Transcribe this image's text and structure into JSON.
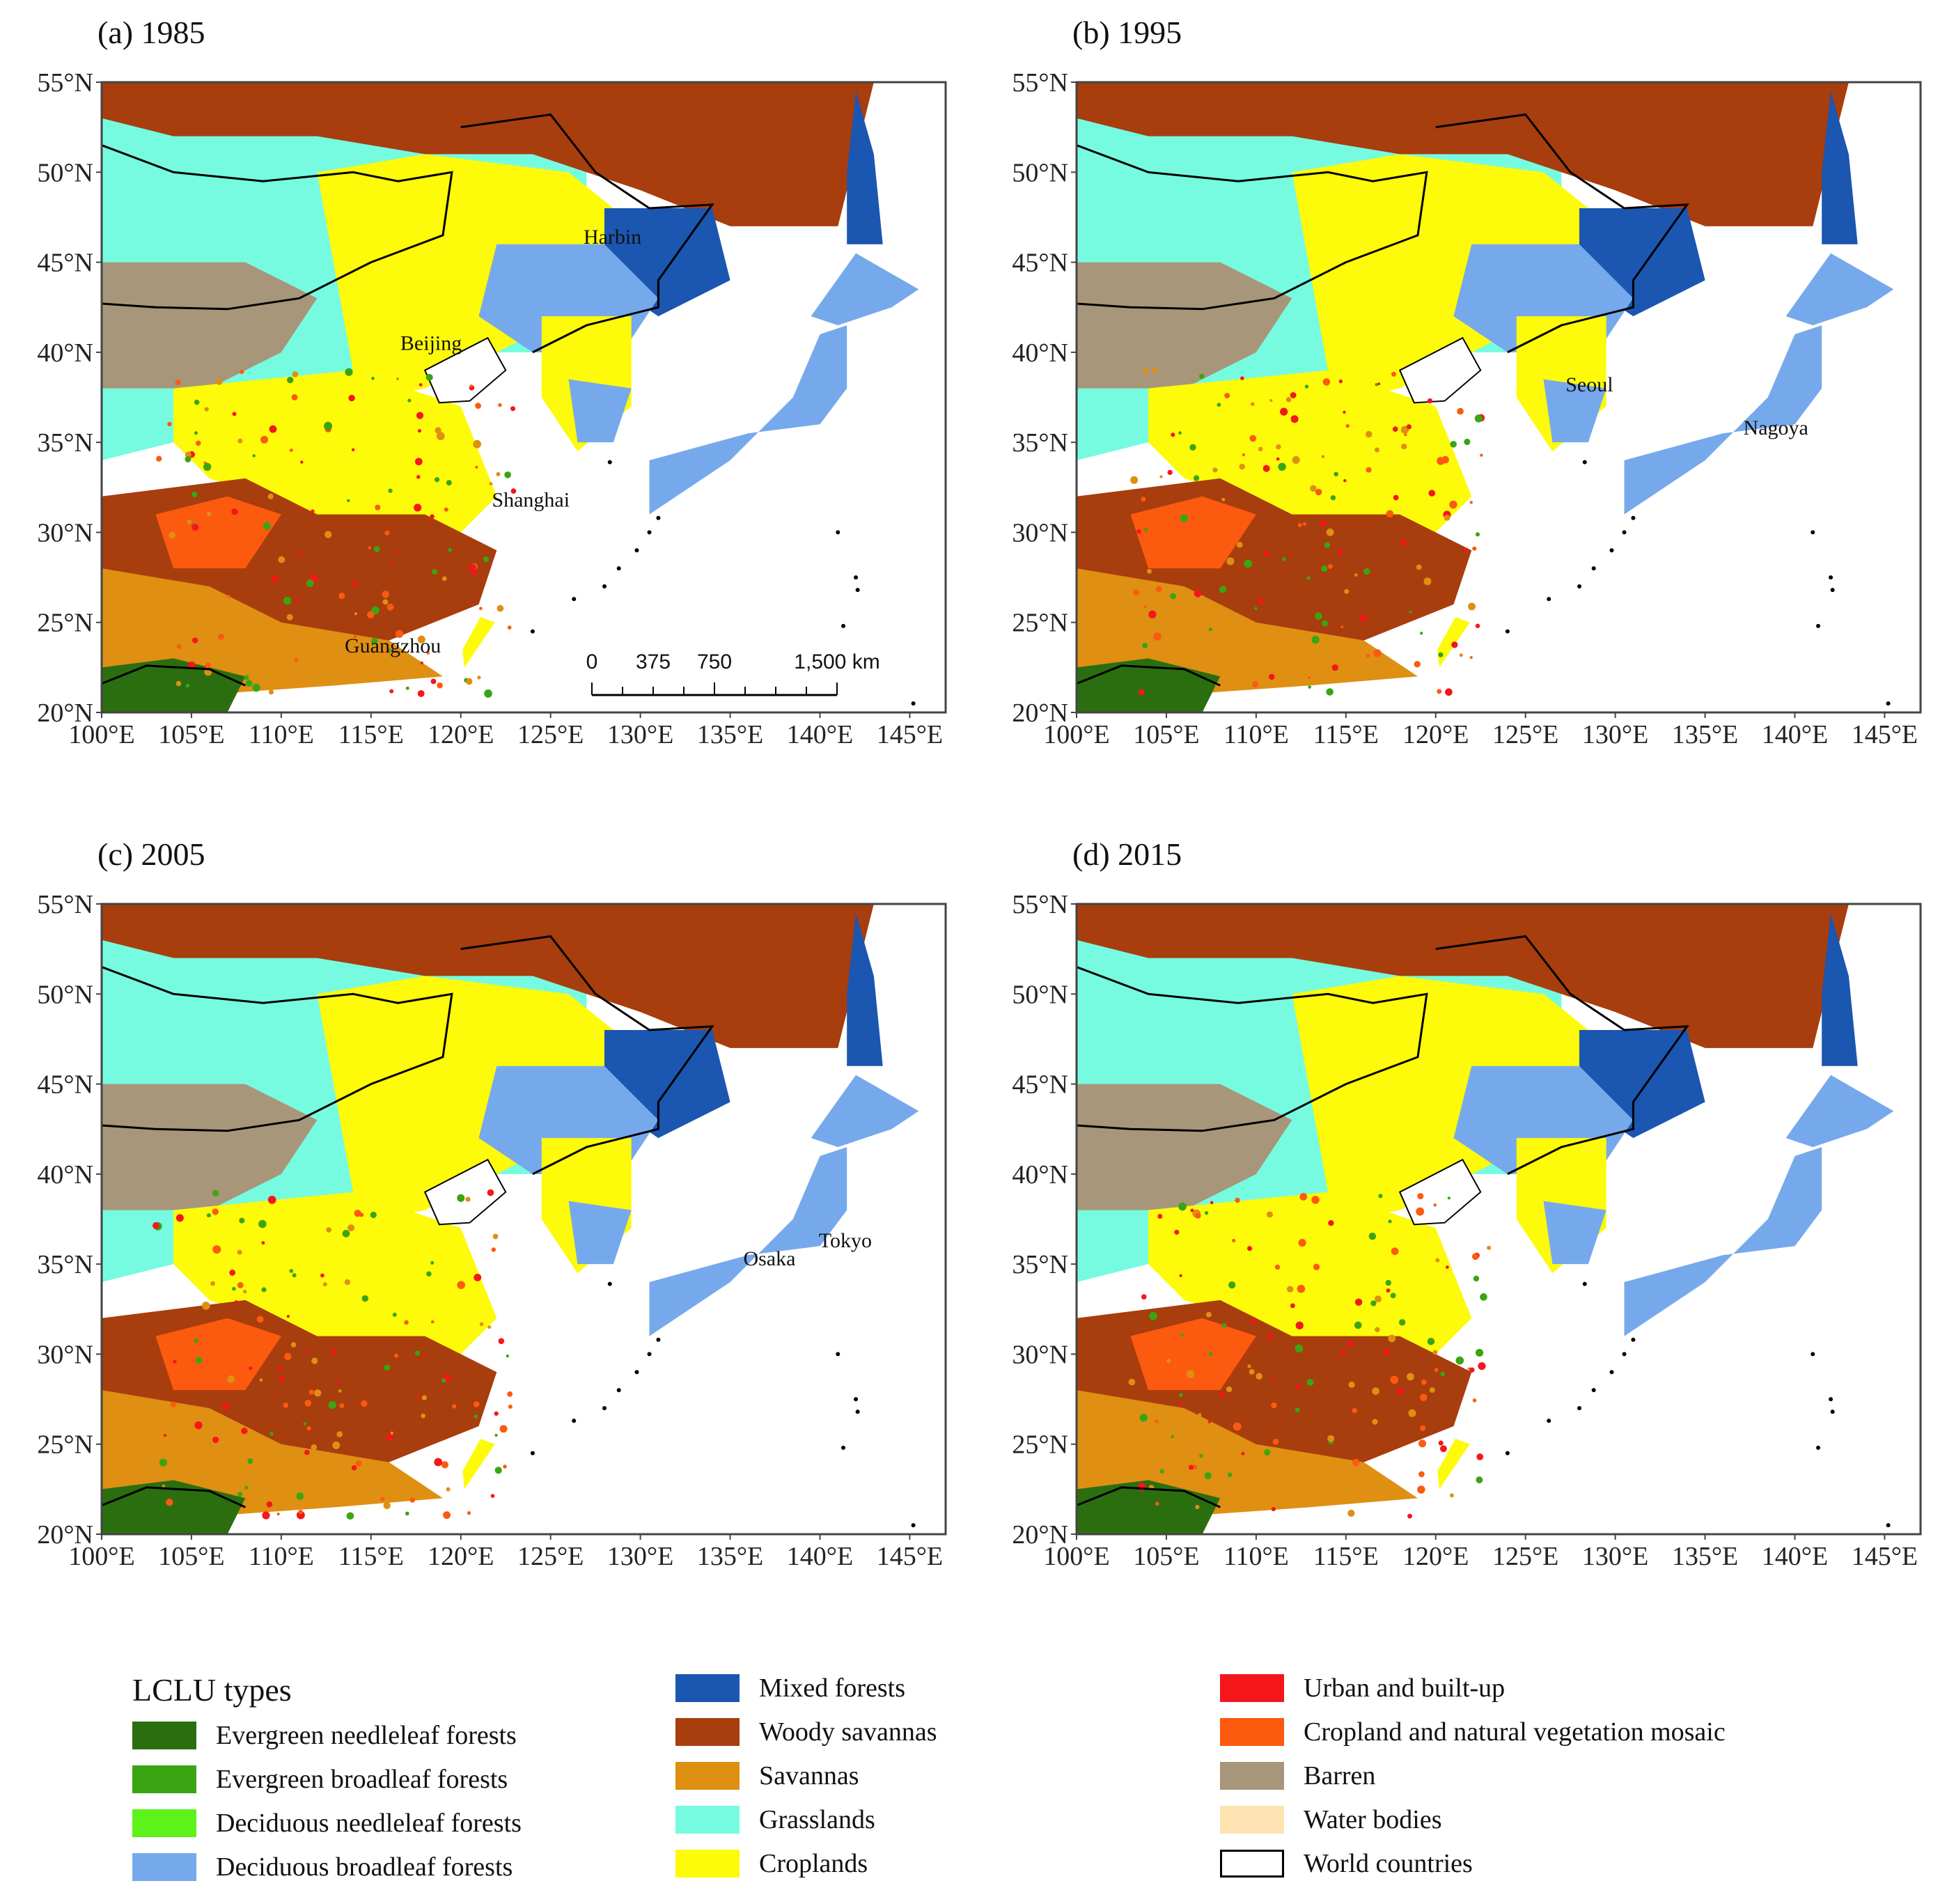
{
  "panels": [
    {
      "id": "a",
      "title": "(a) 1985",
      "year": 1985,
      "cities": [
        {
          "name": "Harbin",
          "lon": 126.6,
          "lat": 45.8
        },
        {
          "name": "Beijing",
          "lon": 116.4,
          "lat": 39.9
        },
        {
          "name": "Shanghai",
          "lon": 121.5,
          "lat": 31.2
        },
        {
          "name": "Guangzhou",
          "lon": 113.3,
          "lat": 23.1
        }
      ],
      "scale_bar": {
        "labels": [
          "0",
          "375",
          "750",
          "1,500 km"
        ],
        "values_km": [
          0,
          375,
          750,
          1500
        ]
      }
    },
    {
      "id": "b",
      "title": "(b) 1995",
      "year": 1995,
      "cities": [
        {
          "name": "Seoul",
          "lon": 127.0,
          "lat": 37.6
        },
        {
          "name": "Nagoya",
          "lon": 136.9,
          "lat": 35.2
        }
      ]
    },
    {
      "id": "c",
      "title": "(c) 2005",
      "year": 2005,
      "cities": [
        {
          "name": "Osaka",
          "lon": 135.5,
          "lat": 34.7
        },
        {
          "name": "Tokyo",
          "lon": 139.7,
          "lat": 35.7
        }
      ]
    },
    {
      "id": "d",
      "title": "(d) 2015",
      "year": 2015,
      "cities": []
    }
  ],
  "axes": {
    "lat_ticks": [
      "20°N",
      "25°N",
      "30°N",
      "35°N",
      "40°N",
      "45°N",
      "50°N",
      "55°N"
    ],
    "lon_ticks": [
      "100°E",
      "105°E",
      "110°E",
      "115°E",
      "120°E",
      "125°E",
      "130°E",
      "135°E",
      "140°E",
      "145°E"
    ],
    "lon_range": [
      100,
      147
    ],
    "lat_range": [
      20,
      55
    ]
  },
  "legend": {
    "title": "LCLU types",
    "columns": [
      [
        {
          "label": "Evergreen needleleaf forests",
          "color": "#2b6e10"
        },
        {
          "label": "Evergreen broadleaf forests",
          "color": "#3aa512"
        },
        {
          "label": "Deciduous needleleaf forests",
          "color": "#5cf21a"
        },
        {
          "label": "Deciduous broadleaf forests",
          "color": "#76a9ec"
        }
      ],
      [
        {
          "label": "Mixed forests",
          "color": "#1b56b0"
        },
        {
          "label": "Woody savannas",
          "color": "#a83d0e"
        },
        {
          "label": "Savannas",
          "color": "#df8f12"
        },
        {
          "label": "Grasslands",
          "color": "#76fbe0"
        },
        {
          "label": "Croplands",
          "color": "#fdfa0a"
        }
      ],
      [
        {
          "label": "Urban and built-up",
          "color": "#f5161b"
        },
        {
          "label": "Cropland and natural vegetation mosaic",
          "color": "#fb5a0f"
        },
        {
          "label": "Barren",
          "color": "#a8967a"
        },
        {
          "label": "Water bodies",
          "color": "#fde3b2"
        },
        {
          "label": "World countries",
          "color": "#ffffff"
        }
      ]
    ]
  }
}
